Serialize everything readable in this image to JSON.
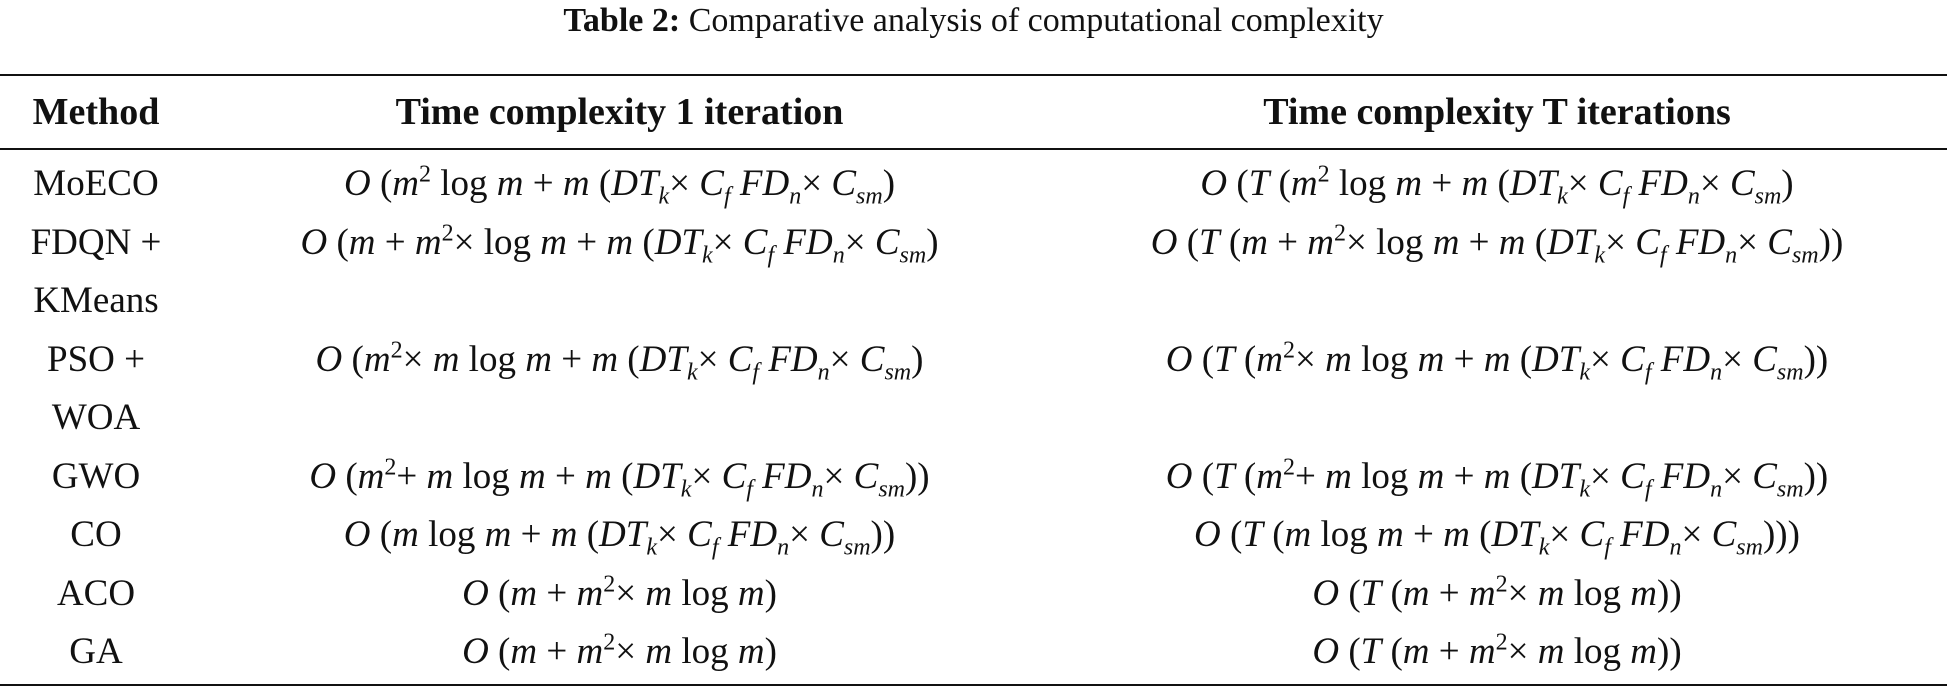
{
  "caption": {
    "label": "Table 2:",
    "text": "Comparative analysis of computational complexity"
  },
  "table": {
    "headers": [
      "Method",
      "Time complexity 1 iteration",
      "Time complexity T iterations"
    ],
    "rows": [
      {
        "method": "MoECO",
        "one_iteration": "O (m^2 log m + m (DT_k× C_f FD_n× C_sm)",
        "t_iterations": "O (T (m^2 log m + m (DT_k× C_f FD_n× C_sm)"
      },
      {
        "method": "FDQN + KMeans",
        "one_iteration": "O (m + m^2× log m + m (DT_k× C_f FD_n× C_sm)",
        "t_iterations": "O (T (m + m^2× log m + m (DT_k× C_f FD_n× C_sm))"
      },
      {
        "method": "PSO + WOA",
        "one_iteration": "O (m^2× m log m + m (DT_k× C_f FD_n× C_sm)",
        "t_iterations": "O (T (m^2× m log m + m (DT_k× C_f FD_n× C_sm))"
      },
      {
        "method": "GWO",
        "one_iteration": "O (m^2+ m log m + m (DT_k× C_f FD_n× C_sm))",
        "t_iterations": "O (T (m^2+ m log m + m (DT_k× C_f FD_n× C_sm))"
      },
      {
        "method": "CO",
        "one_iteration": "O (m log m + m (DT_k× C_f FD_n× C_sm))",
        "t_iterations": "O (T (m log m + m (DT_k× C_f FD_n× C_sm)))"
      },
      {
        "method": "ACO",
        "one_iteration": "O (m + m^2× m log m)",
        "t_iterations": "O (T (m + m^2× m log m))"
      },
      {
        "method": "GA",
        "one_iteration": "O (m + m^2× m log m)",
        "t_iterations": "O (T (m + m^2× m log m))"
      }
    ]
  }
}
